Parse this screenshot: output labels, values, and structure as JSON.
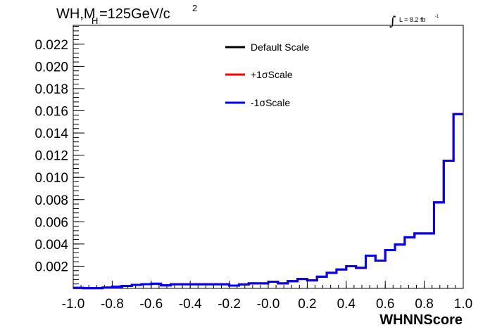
{
  "chart_data": {
    "type": "line",
    "title": {
      "main": "WH,M",
      "subscript": "H",
      "value": "=125GeV/c",
      "superscript": "2"
    },
    "lumi": {
      "integral_sign": "∫",
      "text": "L = 8.2 fb",
      "superscript": "-1"
    },
    "xlabel": "WHNNScore",
    "ylabel": "",
    "xlim": [
      -1.0,
      1.0
    ],
    "ylim": [
      0.0,
      0.0237
    ],
    "x_ticks": [
      "-1.0",
      "-0.8",
      "-0.6",
      "-0.4",
      "-0.2",
      "-0.0",
      "0.2",
      "0.4",
      "0.6",
      "0.8",
      "1.0"
    ],
    "y_ticks": [
      "0.002",
      "0.004",
      "0.006",
      "0.008",
      "0.010",
      "0.012",
      "0.014",
      "0.016",
      "0.018",
      "0.020",
      "0.022"
    ],
    "bin_edges": [
      -1.0,
      -0.95,
      -0.9,
      -0.85,
      -0.8,
      -0.75,
      -0.7,
      -0.65,
      -0.6,
      -0.55,
      -0.5,
      -0.45,
      -0.4,
      -0.35,
      -0.3,
      -0.25,
      -0.2,
      -0.15,
      -0.1,
      -0.05,
      0.0,
      0.05,
      0.1,
      0.15,
      0.2,
      0.25,
      0.3,
      0.35,
      0.4,
      0.45,
      0.5,
      0.55,
      0.6,
      0.65,
      0.7,
      0.75,
      0.8,
      0.85,
      0.9,
      0.95,
      1.0
    ],
    "series": [
      {
        "name": "Default Scale",
        "color": "#000000",
        "values": [
          5e-05,
          2e-05,
          2e-05,
          7e-05,
          0.00015,
          0.00022,
          0.00032,
          0.00038,
          0.00042,
          0.00028,
          0.00037,
          0.00037,
          0.00037,
          0.00037,
          0.00037,
          0.00037,
          0.00025,
          0.00036,
          0.00045,
          0.00045,
          0.0006,
          0.00045,
          0.00065,
          0.00085,
          0.00072,
          0.00105,
          0.0014,
          0.0017,
          0.002,
          0.00185,
          0.00295,
          0.0025,
          0.00345,
          0.00395,
          0.0046,
          0.00495,
          0.00495,
          0.00775,
          0.0115,
          0.0157
        ]
      },
      {
        "name": "+1σScale",
        "color": "#ff0000",
        "values": [
          5e-05,
          2e-05,
          2e-05,
          7e-05,
          0.00015,
          0.00022,
          0.00032,
          0.00038,
          0.00042,
          0.00028,
          0.00037,
          0.00037,
          0.00037,
          0.00037,
          0.00037,
          0.00037,
          0.00025,
          0.00036,
          0.00045,
          0.00045,
          0.0006,
          0.00045,
          0.00065,
          0.00085,
          0.00072,
          0.00105,
          0.0014,
          0.0017,
          0.002,
          0.00185,
          0.00295,
          0.0025,
          0.00345,
          0.00395,
          0.0046,
          0.00495,
          0.00495,
          0.00775,
          0.0115,
          0.0157
        ]
      },
      {
        "name": "-1σScale",
        "color": "#0000ff",
        "values": [
          5e-05,
          2e-05,
          2e-05,
          7e-05,
          0.00015,
          0.00022,
          0.00032,
          0.00038,
          0.00042,
          0.00028,
          0.00037,
          0.00037,
          0.00037,
          0.00037,
          0.00037,
          0.00037,
          0.00025,
          0.00036,
          0.00045,
          0.00045,
          0.0006,
          0.00045,
          0.00065,
          0.00085,
          0.00072,
          0.00105,
          0.0014,
          0.0017,
          0.002,
          0.00185,
          0.00295,
          0.0025,
          0.00345,
          0.00395,
          0.0046,
          0.00495,
          0.00495,
          0.00775,
          0.0115,
          0.0157
        ]
      }
    ],
    "legend_placement": "top-center",
    "grid": false
  }
}
